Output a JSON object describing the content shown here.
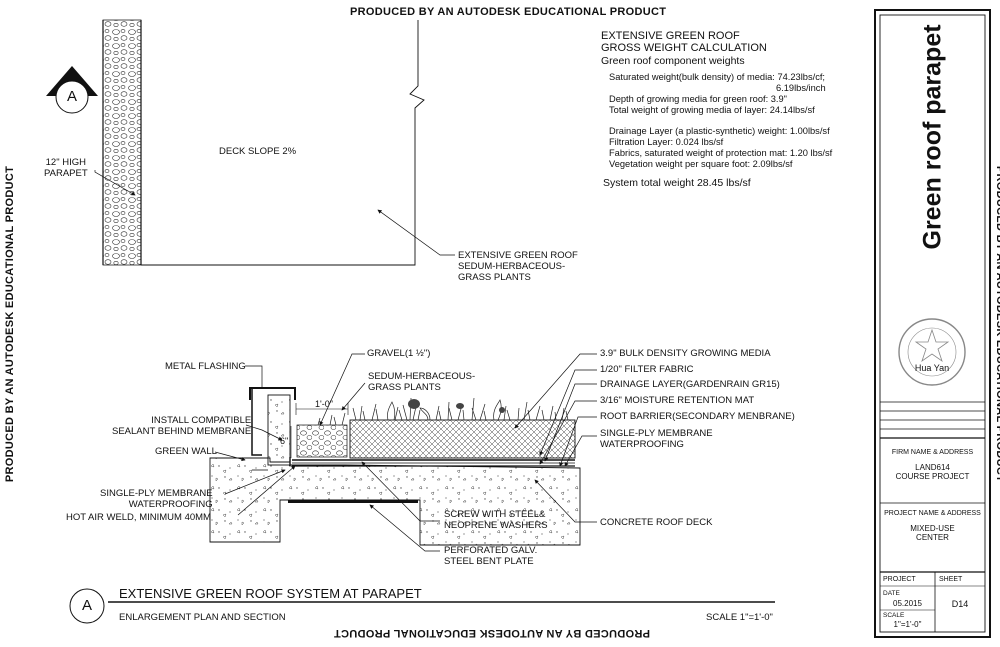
{
  "watermark": "PRODUCED BY AN AUTODESK EDUCATIONAL PRODUCT",
  "calc": {
    "title1": "EXTENSIVE GREEN ROOF",
    "title2": "GROSS WEIGHT CALCULATION",
    "subtitle": "Green roof component weights",
    "line1": "Saturated weight(bulk density) of media:  74.23lbs/cf;",
    "line1b": "6.19lbs/inch",
    "line2": "Depth of growing media for green roof: 3.9\"",
    "line3": "Total weight of growing media of layer: 24.14lbs/sf",
    "line4": "Drainage Layer (a plastic-synthetic) weight: 1.00lbs/sf",
    "line5": "Filtration Layer: 0.024 lbs/sf",
    "line6": "Fabrics, saturated weight of protection mat: 1.20 lbs/sf",
    "line7": "Vegetation weight per square foot: 2.09lbs/sf",
    "total": "System total weight 28.45 lbs/sf"
  },
  "plan": {
    "marker": "A",
    "parapet_label": "12\" HIGH\nPARAPET",
    "deck_slope": "DECK SLOPE 2%",
    "plants_label": "EXTENSIVE GREEN ROOF\nSEDUM-HERBACEOUS-\nGRASS PLANTS"
  },
  "section": {
    "metal_flashing": "METAL FLASHING",
    "gravel": "GRAVEL(1 ½\")",
    "sedum": "SEDUM-HERBACEOUS-\nGRASS PLANTS",
    "dim_1ft": "1'-0\"",
    "dim_6in": "6\"",
    "install_sealant": "INSTALL COMPATIBLE\nSEALANT BEHIND MEMBRANE",
    "green_wall": "GREEN WALL",
    "membrane_left": "SINGLE-PLY MEMBRANE\nWATERPROOFING",
    "hot_air_weld": "HOT AIR WELD, MINIMUM 40MM",
    "screw": "SCREW WITH STEEL&\nNEOPRENE WASHERS",
    "perforated": "PERFORATED GALV.\nSTEEL BENT PLATE",
    "growing_media": "3.9\" BULK DENSITY GROWING MEDIA",
    "filter_fabric": "1/20\" FILTER FABRIC",
    "drainage": "DRAINAGE LAYER(GARDENRAIN GR15)",
    "moisture": "3/16\" MOISTURE RETENTION MAT",
    "root_barrier": "ROOT BARRIER(SECONDARY MENBRANE)",
    "membrane_right": "SINGLE-PLY MEMBRANE\nWATERPROOFING",
    "concrete_deck": "CONCRETE ROOF DECK"
  },
  "footer": {
    "marker": "A",
    "title": "EXTENSIVE GREEN ROOF SYSTEM AT PARAPET",
    "subtitle": "ENLARGEMENT PLAN AND SECTION",
    "scale": "SCALE 1\"=1'-0\""
  },
  "titleblock": {
    "sheet_title": "Green roof parapet",
    "seal_name": "Hua Yan",
    "firm_header": "FIRM NAME & ADDRESS",
    "firm_line1": "LAND614",
    "firm_line2": "COURSE PROJECT",
    "project_header": "PROJECT NAME & ADDRESS",
    "project_line1": "MIXED-USE",
    "project_line2": "CENTER",
    "project_label": "PROJECT",
    "sheet_label": "SHEET",
    "date_label": "DATE",
    "date_value": "05.2015",
    "scale_label": "SCALE",
    "scale_value": "1\"=1'-0\"",
    "sheet_value": "D14"
  }
}
